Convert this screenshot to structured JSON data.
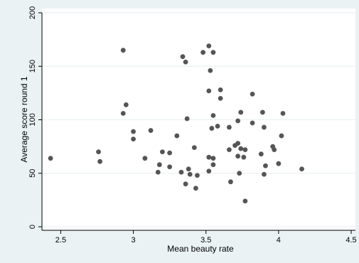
{
  "chart_data": {
    "type": "scatter",
    "title": "",
    "xlabel": "Mean beauty rate",
    "ylabel": "Average score round 1",
    "xlim": [
      2.4,
      4.5
    ],
    "ylim": [
      0,
      200
    ],
    "x_ticks": [
      2.5,
      3,
      3.5,
      4,
      4.5
    ],
    "x_tick_labels": [
      "2.5",
      "3",
      "3.5",
      "4",
      "4.5"
    ],
    "y_ticks": [
      0,
      50,
      100,
      150,
      200
    ],
    "y_tick_labels": [
      "0",
      "50",
      "100",
      "150",
      "200"
    ],
    "grid": "horizontal",
    "legend": "none",
    "colors": {
      "background": "#eaf2f3",
      "plot_area": "#ffffff",
      "marker": "#555555",
      "gridline": "#e6eef0"
    },
    "series": [
      {
        "points": [
          [
            2.43,
            64
          ],
          [
            2.76,
            70
          ],
          [
            2.77,
            61
          ],
          [
            2.93,
            165
          ],
          [
            2.93,
            106
          ],
          [
            2.95,
            114
          ],
          [
            3.0,
            89
          ],
          [
            3.0,
            82
          ],
          [
            3.08,
            64
          ],
          [
            3.12,
            90
          ],
          [
            3.17,
            51
          ],
          [
            3.18,
            58
          ],
          [
            3.2,
            70
          ],
          [
            3.25,
            69
          ],
          [
            3.25,
            56
          ],
          [
            3.3,
            85
          ],
          [
            3.34,
            159
          ],
          [
            3.36,
            154
          ],
          [
            3.33,
            51
          ],
          [
            3.36,
            40
          ],
          [
            3.37,
            101
          ],
          [
            3.38,
            54
          ],
          [
            3.39,
            49
          ],
          [
            3.42,
            74
          ],
          [
            3.43,
            36
          ],
          [
            3.44,
            48
          ],
          [
            3.48,
            163
          ],
          [
            3.52,
            169
          ],
          [
            3.55,
            163
          ],
          [
            3.53,
            146
          ],
          [
            3.52,
            127
          ],
          [
            3.6,
            128
          ],
          [
            3.6,
            120
          ],
          [
            3.55,
            104
          ],
          [
            3.58,
            94
          ],
          [
            3.54,
            92
          ],
          [
            3.52,
            65
          ],
          [
            3.55,
            64
          ],
          [
            3.52,
            52
          ],
          [
            3.55,
            58
          ],
          [
            3.66,
            93
          ],
          [
            3.66,
            72
          ],
          [
            3.67,
            42
          ],
          [
            3.7,
            76
          ],
          [
            3.72,
            78
          ],
          [
            3.72,
            99
          ],
          [
            3.74,
            107
          ],
          [
            3.72,
            66
          ],
          [
            3.74,
            73
          ],
          [
            3.77,
            72
          ],
          [
            3.76,
            65
          ],
          [
            3.73,
            50
          ],
          [
            3.77,
            24
          ],
          [
            3.82,
            124
          ],
          [
            3.82,
            97
          ],
          [
            3.89,
            107
          ],
          [
            3.9,
            93
          ],
          [
            3.88,
            68
          ],
          [
            3.9,
            49
          ],
          [
            3.91,
            57
          ],
          [
            3.96,
            75
          ],
          [
            3.97,
            72
          ],
          [
            4.0,
            59
          ],
          [
            4.02,
            85
          ],
          [
            4.03,
            106
          ],
          [
            4.16,
            54
          ]
        ]
      }
    ]
  }
}
